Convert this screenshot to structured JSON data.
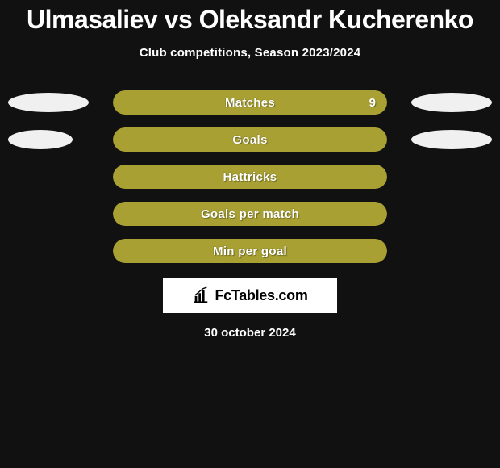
{
  "header": {
    "player1": "Ulmasaliev",
    "vs": "vs",
    "player2": "Oleksandr Kucherenko",
    "subtitle": "Club competitions, Season 2023/2024"
  },
  "rows": [
    {
      "label": "Matches",
      "value": "9",
      "value_visible": true,
      "bar_color": "#a8a032",
      "left_ellipse": true,
      "left_ellipse_width": 100,
      "right_ellipse": true,
      "right_ellipse_width": 100
    },
    {
      "label": "Goals",
      "value": "",
      "value_visible": false,
      "bar_color": "#a8a032",
      "left_ellipse": true,
      "left_ellipse_width": 80,
      "right_ellipse": true,
      "right_ellipse_width": 100
    },
    {
      "label": "Hattricks",
      "value": "",
      "value_visible": false,
      "bar_color": "#a8a032",
      "left_ellipse": false,
      "right_ellipse": false
    },
    {
      "label": "Goals per match",
      "value": "",
      "value_visible": false,
      "bar_color": "#a8a032",
      "left_ellipse": false,
      "right_ellipse": false
    },
    {
      "label": "Min per goal",
      "value": "",
      "value_visible": false,
      "bar_color": "#a8a032",
      "left_ellipse": false,
      "right_ellipse": false
    }
  ],
  "brand": {
    "text": "FcTables.com"
  },
  "footer": {
    "date": "30 october 2024"
  },
  "colors": {
    "page_bg": "#111111",
    "bar": "#a8a032",
    "ellipse": "#f0f0f0",
    "text": "#ffffff",
    "brand_bg": "#ffffff",
    "brand_text": "#000000"
  }
}
